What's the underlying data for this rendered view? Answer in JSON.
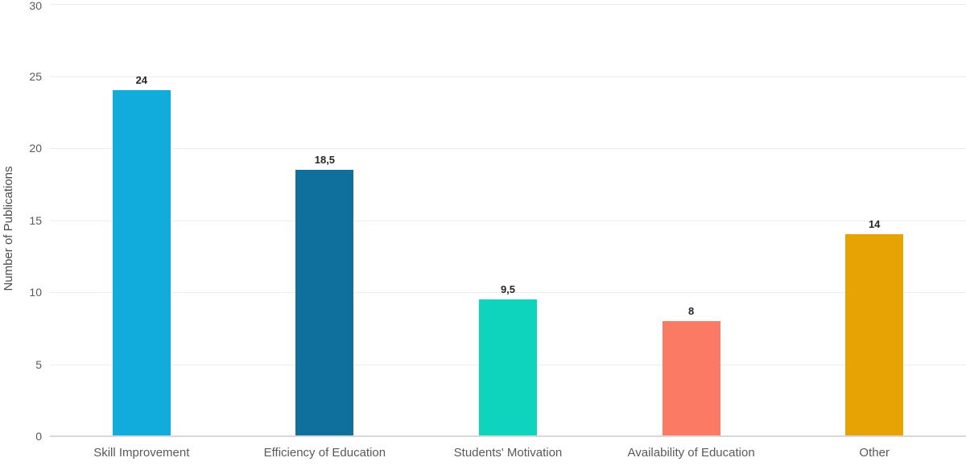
{
  "chart_data": {
    "type": "bar",
    "title": "",
    "xlabel": "",
    "ylabel": "Number of Publications",
    "categories": [
      "Skill Improvement",
      "Efficiency of Education",
      "Students' Motivation",
      "Availability of Education",
      "Other"
    ],
    "values": [
      24,
      18.5,
      9.5,
      8,
      14
    ],
    "value_labels": [
      "24",
      "18,5",
      "9,5",
      "8",
      "14"
    ],
    "bar_colors": [
      "#12acdc",
      "#0f709e",
      "#0ed4be",
      "#fb7a63",
      "#e6a303"
    ],
    "y_ticks": [
      0,
      5,
      10,
      15,
      20,
      25,
      30
    ],
    "y_tick_labels": [
      "0",
      "5",
      "10",
      "15",
      "20",
      "25",
      "30"
    ],
    "ylim": [
      0,
      30
    ],
    "grid": true,
    "legend": "none",
    "decimal_separator": ",",
    "colors": {
      "background": "#ffffff",
      "gridline": "#ededed",
      "axis_line": "#d8d8d8",
      "tick_text": "#595959",
      "category_text": "#595959",
      "value_text": "#262626",
      "axis_title_text": "#4d4d4d"
    }
  }
}
